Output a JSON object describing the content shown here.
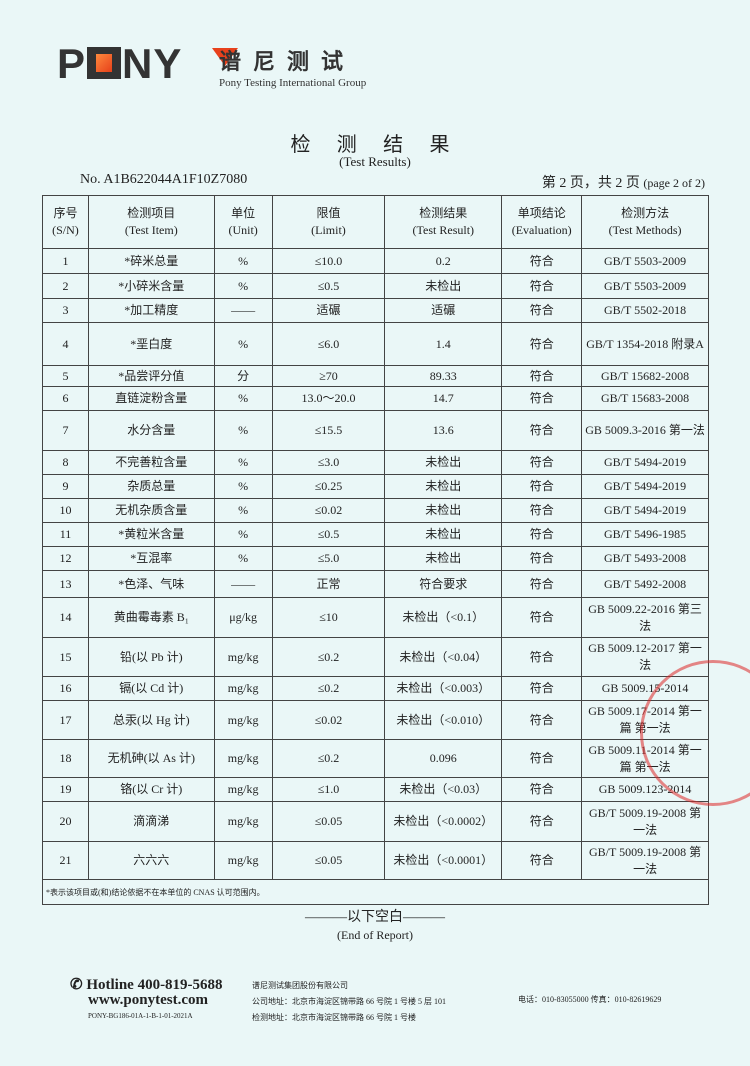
{
  "header": {
    "logo_text": "PONY",
    "brand_cn": "谱尼测试",
    "brand_en": "Pony Testing International Group"
  },
  "title": "检 测 结 果",
  "subtitle": "(Test Results)",
  "report_no": "No. A1B622044A1F10Z7080",
  "page_info_cn": "第 2 页，共 2 页",
  "page_info_en": "(page 2 of 2)",
  "table": {
    "headers": [
      [
        "序号",
        "(S/N)"
      ],
      [
        "检测项目",
        "(Test Item)"
      ],
      [
        "单位",
        "(Unit)"
      ],
      [
        "限值",
        "(Limit)"
      ],
      [
        "检测结果",
        "(Test Result)"
      ],
      [
        "单项结论",
        "(Evaluation)"
      ],
      [
        "检测方法",
        "(Test Methods)"
      ]
    ],
    "rows": [
      [
        "1",
        "*碎米总量",
        "%",
        "≤10.0",
        "0.2",
        "符合",
        "GB/T 5503-2009"
      ],
      [
        "2",
        "*小碎米含量",
        "%",
        "≤0.5",
        "未检出",
        "符合",
        "GB/T 5503-2009"
      ],
      [
        "3",
        "*加工精度",
        "——",
        "适碾",
        "适碾",
        "符合",
        "GB/T 5502-2018"
      ],
      [
        "4",
        "*垩白度",
        "%",
        "≤6.0",
        "1.4",
        "符合",
        "GB/T 1354-2018 附录A"
      ],
      [
        "5",
        "*品尝评分值",
        "分",
        "≥70",
        "89.33",
        "符合",
        "GB/T 15682-2008"
      ],
      [
        "6",
        "直链淀粉含量",
        "%",
        "13.0～20.0",
        "14.7",
        "符合",
        "GB/T 15683-2008"
      ],
      [
        "7",
        "水分含量",
        "%",
        "≤15.5",
        "13.6",
        "符合",
        "GB 5009.3-2016 第一法"
      ],
      [
        "8",
        "不完善粒含量",
        "%",
        "≤3.0",
        "未检出",
        "符合",
        "GB/T 5494-2019"
      ],
      [
        "9",
        "杂质总量",
        "%",
        "≤0.25",
        "未检出",
        "符合",
        "GB/T 5494-2019"
      ],
      [
        "10",
        "无机杂质含量",
        "%",
        "≤0.02",
        "未检出",
        "符合",
        "GB/T 5494-2019"
      ],
      [
        "11",
        "*黄粒米含量",
        "%",
        "≤0.5",
        "未检出",
        "符合",
        "GB/T 5496-1985"
      ],
      [
        "12",
        "*互混率",
        "%",
        "≤5.0",
        "未检出",
        "符合",
        "GB/T 5493-2008"
      ],
      [
        "13",
        "*色泽、气味",
        "——",
        "正常",
        "符合要求",
        "符合",
        "GB/T 5492-2008"
      ],
      [
        "14",
        "黄曲霉毒素 B₁",
        "μg/kg",
        "≤10",
        "未检出（<0.1）",
        "符合",
        "GB 5009.22-2016 第三法"
      ],
      [
        "15",
        "铅(以 Pb 计)",
        "mg/kg",
        "≤0.2",
        "未检出（<0.04）",
        "符合",
        "GB 5009.12-2017 第一法"
      ],
      [
        "16",
        "镉(以 Cd 计)",
        "mg/kg",
        "≤0.2",
        "未检出（<0.003）",
        "符合",
        "GB 5009.15-2014"
      ],
      [
        "17",
        "总汞(以 Hg 计)",
        "mg/kg",
        "≤0.02",
        "未检出（<0.010）",
        "符合",
        "GB 5009.17-2014 第一篇 第一法"
      ],
      [
        "18",
        "无机砷(以 As 计)",
        "mg/kg",
        "≤0.2",
        "0.096",
        "符合",
        "GB 5009.11-2014 第一篇 第一法"
      ],
      [
        "19",
        "铬(以 Cr 计)",
        "mg/kg",
        "≤1.0",
        "未检出（<0.03）",
        "符合",
        "GB 5009.123-2014"
      ],
      [
        "20",
        "滴滴涕",
        "mg/kg",
        "≤0.05",
        "未检出（<0.0002）",
        "符合",
        "GB/T 5009.19-2008 第一法"
      ],
      [
        "21",
        "六六六",
        "mg/kg",
        "≤0.05",
        "未检出（<0.0001）",
        "符合",
        "GB/T 5009.19-2008 第一法"
      ]
    ],
    "row_heights": [
      25,
      25,
      24,
      43,
      21,
      24,
      40,
      24,
      24,
      24,
      24,
      24,
      27,
      40,
      39,
      24,
      39,
      38,
      24,
      40,
      38
    ],
    "footnote": "*表示该项目或(和)结论依据不在本单位的 CNAS 认可范围内。"
  },
  "end_cn": "———以下空白———",
  "end_en": "(End of Report)",
  "footer": {
    "hotline": "✆ Hotline 400-819-5688",
    "website": "www.ponytest.com",
    "form_code": "PONY-BG186-01A-1-B-1-01-2021A",
    "company": "谱尼测试集团股份有限公司",
    "company_address": "公司地址：北京市海淀区锦带路 66 号院 1 号楼 5 层 101",
    "test_address": "检测地址：北京市海淀区锦带路 66 号院 1 号楼",
    "phone_fax": "电话：010-83055000 传真：010-82619629"
  },
  "colors": {
    "background": "#eaf7f7",
    "logo_accent": "#e8411c",
    "stamp": "#dc2828"
  }
}
